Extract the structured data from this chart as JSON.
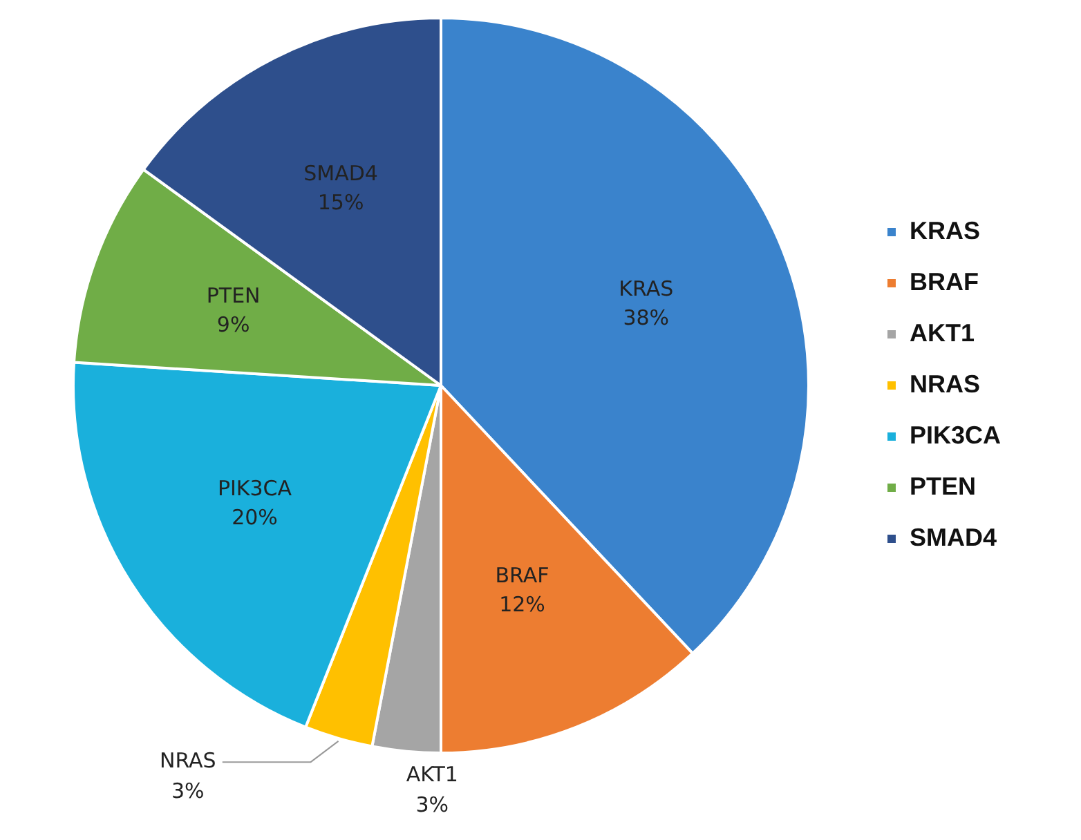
{
  "chart_data": {
    "type": "pie",
    "categories": [
      "KRAS",
      "BRAF",
      "AKT1",
      "NRAS",
      "PIK3CA",
      "PTEN",
      "SMAD4"
    ],
    "values": [
      38,
      12,
      3,
      3,
      20,
      9,
      15
    ],
    "value_labels": [
      "38%",
      "12%",
      "3%",
      "3%",
      "20%",
      "9%",
      "15%"
    ],
    "colors": [
      "#3a83cc",
      "#ed7d31",
      "#a5a5a5",
      "#ffc000",
      "#1ab0dc",
      "#70ad47",
      "#2e4f8c"
    ],
    "legend": "right"
  }
}
